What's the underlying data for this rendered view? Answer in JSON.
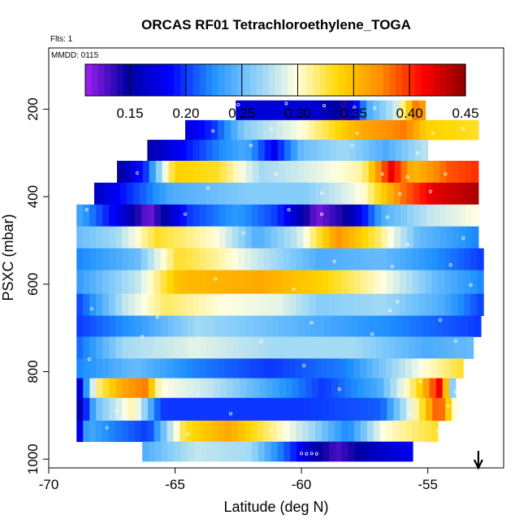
{
  "chart_data": {
    "type": "heatmap",
    "title": "ORCAS RF01 Tetrachloroethylene_TOGA",
    "flights_label": "Flts: 1",
    "date_label": "MMDD: 0115",
    "xlabel": "Latitude (deg N)",
    "ylabel": "PSXC (mbar)",
    "xlim": [
      -70,
      -52
    ],
    "ylim": [
      1020,
      60
    ],
    "x_ticks": [
      -70,
      -65,
      -60,
      -55
    ],
    "x_tick_labels": [
      "-70",
      "-65",
      "-60",
      "-55"
    ],
    "y_ticks": [
      200,
      400,
      600,
      800,
      1000
    ],
    "y_tick_labels": [
      "200",
      "400",
      "600",
      "800",
      "1000"
    ],
    "colorbar": {
      "range": [
        0.11,
        0.45
      ],
      "ticks": [
        0.15,
        0.2,
        0.25,
        0.3,
        0.35,
        0.4,
        0.45
      ],
      "tick_labels": [
        "0.15",
        "0.20",
        "0.25",
        "0.30",
        "0.35",
        "0.40",
        "0.45"
      ],
      "colors": [
        "#a020f0",
        "#0000a0",
        "#0000ff",
        "#1e90ff",
        "#87cefa",
        "#ffffe0",
        "#ffd700",
        "#ff8c00",
        "#ff0000",
        "#8b0000"
      ]
    },
    "rows": [
      {
        "p_top": 180,
        "p_bot": 225,
        "lat_start": -62.6,
        "lat_end": -55.1,
        "knots": [
          [
            0,
            0.17
          ],
          [
            0.4,
            0.17
          ],
          [
            0.58,
            0.14
          ],
          [
            0.7,
            0.24
          ],
          [
            0.84,
            0.28
          ],
          [
            0.9,
            0.33
          ],
          [
            0.95,
            0.38
          ],
          [
            1,
            0.36
          ]
        ]
      },
      {
        "p_top": 225,
        "p_bot": 270,
        "lat_start": -64.6,
        "lat_end": -53.0,
        "knots": [
          [
            0,
            0.17
          ],
          [
            0.1,
            0.2
          ],
          [
            0.2,
            0.26
          ],
          [
            0.4,
            0.3
          ],
          [
            0.6,
            0.36
          ],
          [
            0.75,
            0.38
          ],
          [
            0.82,
            0.34
          ],
          [
            1,
            0.33
          ]
        ]
      },
      {
        "p_top": 270,
        "p_bot": 318,
        "lat_start": -66.1,
        "lat_end": -55.0,
        "knots": [
          [
            0,
            0.15
          ],
          [
            0.25,
            0.22
          ],
          [
            0.35,
            0.24
          ],
          [
            0.45,
            0.18
          ],
          [
            0.55,
            0.25
          ],
          [
            0.7,
            0.27
          ],
          [
            0.85,
            0.24
          ],
          [
            1,
            0.28
          ]
        ]
      },
      {
        "p_top": 318,
        "p_bot": 368,
        "lat_start": -67.3,
        "lat_end": -53.0,
        "knots": [
          [
            0,
            0.14
          ],
          [
            0.08,
            0.2
          ],
          [
            0.16,
            0.34
          ],
          [
            0.28,
            0.33
          ],
          [
            0.4,
            0.27
          ],
          [
            0.55,
            0.29
          ],
          [
            0.68,
            0.31
          ],
          [
            0.76,
            0.42
          ],
          [
            0.82,
            0.35
          ],
          [
            0.92,
            0.39
          ],
          [
            1,
            0.4
          ]
        ]
      },
      {
        "p_top": 368,
        "p_bot": 418,
        "lat_start": -68.2,
        "lat_end": -53.0,
        "knots": [
          [
            0,
            0.16
          ],
          [
            0.2,
            0.24
          ],
          [
            0.4,
            0.26
          ],
          [
            0.55,
            0.26
          ],
          [
            0.7,
            0.3
          ],
          [
            0.8,
            0.38
          ],
          [
            0.88,
            0.42
          ],
          [
            1,
            0.44
          ]
        ]
      },
      {
        "p_top": 418,
        "p_bot": 468,
        "lat_start": -68.9,
        "lat_end": -53.0,
        "knots": [
          [
            0,
            0.24
          ],
          [
            0.1,
            0.18
          ],
          [
            0.18,
            0.12
          ],
          [
            0.28,
            0.2
          ],
          [
            0.4,
            0.23
          ],
          [
            0.5,
            0.2
          ],
          [
            0.6,
            0.12
          ],
          [
            0.68,
            0.15
          ],
          [
            0.76,
            0.24
          ],
          [
            0.88,
            0.28
          ],
          [
            1,
            0.3
          ]
        ]
      },
      {
        "p_top": 468,
        "p_bot": 518,
        "lat_start": -68.9,
        "lat_end": -53.0,
        "knots": [
          [
            0,
            0.25
          ],
          [
            0.1,
            0.27
          ],
          [
            0.2,
            0.33
          ],
          [
            0.35,
            0.3
          ],
          [
            0.45,
            0.24
          ],
          [
            0.55,
            0.28
          ],
          [
            0.65,
            0.37
          ],
          [
            0.75,
            0.32
          ],
          [
            0.85,
            0.25
          ],
          [
            1,
            0.22
          ]
        ]
      },
      {
        "p_top": 518,
        "p_bot": 568,
        "lat_start": -68.9,
        "lat_end": -52.8,
        "knots": [
          [
            0,
            0.22
          ],
          [
            0.15,
            0.25
          ],
          [
            0.25,
            0.33
          ],
          [
            0.35,
            0.31
          ],
          [
            0.45,
            0.28
          ],
          [
            0.6,
            0.24
          ],
          [
            0.75,
            0.25
          ],
          [
            1,
            0.2
          ]
        ]
      },
      {
        "p_top": 568,
        "p_bot": 622,
        "lat_start": -68.9,
        "lat_end": -52.8,
        "knots": [
          [
            0,
            0.23
          ],
          [
            0.15,
            0.28
          ],
          [
            0.25,
            0.35
          ],
          [
            0.45,
            0.36
          ],
          [
            0.6,
            0.34
          ],
          [
            0.75,
            0.3
          ],
          [
            0.88,
            0.25
          ],
          [
            1,
            0.22
          ]
        ]
      },
      {
        "p_top": 622,
        "p_bot": 672,
        "lat_start": -68.9,
        "lat_end": -52.8,
        "knots": [
          [
            0,
            0.2
          ],
          [
            0.12,
            0.28
          ],
          [
            0.22,
            0.32
          ],
          [
            0.35,
            0.3
          ],
          [
            0.5,
            0.29
          ],
          [
            0.6,
            0.26
          ],
          [
            0.75,
            0.27
          ],
          [
            0.9,
            0.24
          ],
          [
            1,
            0.2
          ]
        ]
      },
      {
        "p_top": 672,
        "p_bot": 720,
        "lat_start": -68.9,
        "lat_end": -52.9,
        "knots": [
          [
            0,
            0.2
          ],
          [
            0.15,
            0.23
          ],
          [
            0.3,
            0.27
          ],
          [
            0.5,
            0.25
          ],
          [
            0.7,
            0.23
          ],
          [
            1,
            0.2
          ]
        ]
      },
      {
        "p_top": 720,
        "p_bot": 770,
        "lat_start": -68.9,
        "lat_end": -53.2,
        "knots": [
          [
            0,
            0.21
          ],
          [
            0.12,
            0.27
          ],
          [
            0.3,
            0.29
          ],
          [
            0.5,
            0.27
          ],
          [
            0.7,
            0.27
          ],
          [
            0.88,
            0.24
          ],
          [
            1,
            0.25
          ]
        ]
      },
      {
        "p_top": 770,
        "p_bot": 815,
        "lat_start": -68.9,
        "lat_end": -53.6,
        "knots": [
          [
            0,
            0.22
          ],
          [
            0.15,
            0.25
          ],
          [
            0.3,
            0.22
          ],
          [
            0.5,
            0.2
          ],
          [
            0.7,
            0.22
          ],
          [
            0.9,
            0.3
          ],
          [
            1,
            0.33
          ]
        ]
      },
      {
        "p_top": 815,
        "p_bot": 860,
        "lat_start": -68.9,
        "lat_end": -53.9,
        "knots": [
          [
            0,
            0.14
          ],
          [
            0.05,
            0.31
          ],
          [
            0.12,
            0.36
          ],
          [
            0.18,
            0.38
          ],
          [
            0.22,
            0.3
          ],
          [
            0.35,
            0.28
          ],
          [
            0.5,
            0.24
          ],
          [
            0.65,
            0.2
          ],
          [
            0.8,
            0.24
          ],
          [
            0.9,
            0.33
          ],
          [
            0.96,
            0.42
          ],
          [
            1,
            0.22
          ]
        ]
      },
      {
        "p_top": 860,
        "p_bot": 912,
        "lat_start": -68.9,
        "lat_end": -53.8,
        "knots": [
          [
            0,
            0.14
          ],
          [
            0.05,
            0.25
          ],
          [
            0.15,
            0.31
          ],
          [
            0.22,
            0.2
          ],
          [
            0.4,
            0.2
          ],
          [
            0.6,
            0.2
          ],
          [
            0.8,
            0.21
          ],
          [
            0.9,
            0.32
          ],
          [
            0.95,
            0.4
          ],
          [
            1,
            0.28
          ]
        ]
      },
      {
        "p_top": 912,
        "p_bot": 960,
        "lat_start": -68.9,
        "lat_end": -54.6,
        "knots": [
          [
            0,
            0.15
          ],
          [
            0.03,
            0.24
          ],
          [
            0.1,
            0.22
          ],
          [
            0.2,
            0.2
          ],
          [
            0.3,
            0.33
          ],
          [
            0.42,
            0.36
          ],
          [
            0.55,
            0.31
          ],
          [
            0.65,
            0.27
          ],
          [
            0.75,
            0.22
          ],
          [
            0.85,
            0.3
          ],
          [
            1,
            0.33
          ]
        ]
      },
      {
        "p_top": 960,
        "p_bot": 1005,
        "lat_start": -66.3,
        "lat_end": -55.6,
        "knots": [
          [
            0,
            0.24
          ],
          [
            0.2,
            0.28
          ],
          [
            0.4,
            0.27
          ],
          [
            0.55,
            0.2
          ],
          [
            0.62,
            0.16
          ],
          [
            0.72,
            0.13
          ],
          [
            0.85,
            0.16
          ],
          [
            1,
            0.18
          ]
        ]
      }
    ],
    "samples": [
      [
        -62.5,
        190
      ],
      [
        -60.6,
        187
      ],
      [
        -59.1,
        192
      ],
      [
        -57.9,
        196
      ],
      [
        -57.1,
        197
      ],
      [
        -65.2,
        240
      ],
      [
        -63.5,
        250
      ],
      [
        -61.2,
        245
      ],
      [
        -57.8,
        255
      ],
      [
        -54.8,
        255
      ],
      [
        -53.6,
        245
      ],
      [
        -62,
        283
      ],
      [
        -58,
        283
      ],
      [
        -55.4,
        300
      ],
      [
        -53.8,
        312
      ],
      [
        -66.5,
        346
      ],
      [
        -61,
        348
      ],
      [
        -56.8,
        348
      ],
      [
        -55.8,
        355
      ],
      [
        -54.3,
        348
      ],
      [
        -63.7,
        380
      ],
      [
        -59.2,
        392
      ],
      [
        -56.1,
        394
      ],
      [
        -54.9,
        388
      ],
      [
        -68.5,
        430
      ],
      [
        -64.6,
        440
      ],
      [
        -60.5,
        430
      ],
      [
        -59.2,
        440
      ],
      [
        -56.6,
        447
      ],
      [
        -66.5,
        480
      ],
      [
        -62.3,
        483
      ],
      [
        -59.9,
        500
      ],
      [
        -55.8,
        510
      ],
      [
        -53.6,
        495
      ],
      [
        -65.4,
        530
      ],
      [
        -58.7,
        548
      ],
      [
        -56.4,
        560
      ],
      [
        -54.1,
        556
      ],
      [
        -66,
        620
      ],
      [
        -63.4,
        588
      ],
      [
        -60.3,
        612
      ],
      [
        -56.2,
        640
      ],
      [
        -53.3,
        602
      ],
      [
        -68.3,
        656
      ],
      [
        -65.7,
        675
      ],
      [
        -63.2,
        656
      ],
      [
        -59.6,
        688
      ],
      [
        -56.5,
        660
      ],
      [
        -54.5,
        682
      ],
      [
        -66.3,
        720
      ],
      [
        -61.6,
        731
      ],
      [
        -57.2,
        714
      ],
      [
        -53.9,
        730
      ],
      [
        -68.4,
        772
      ],
      [
        -59.9,
        786
      ],
      [
        -55.5,
        798
      ],
      [
        -53.5,
        790
      ],
      [
        -64.1,
        852
      ],
      [
        -58.5,
        840
      ],
      [
        -55.3,
        822
      ],
      [
        -53.9,
        846
      ],
      [
        -67.3,
        890
      ],
      [
        -62.8,
        896
      ],
      [
        -55.7,
        898
      ],
      [
        -54.2,
        878
      ],
      [
        -67.7,
        928
      ],
      [
        -64.5,
        943
      ],
      [
        -61.2,
        935
      ],
      [
        -54.6,
        936
      ],
      [
        -60,
        987
      ],
      [
        -59.8,
        988
      ],
      [
        -59.6,
        987
      ],
      [
        -59.4,
        988
      ]
    ],
    "arrow_lat": -53.0
  }
}
